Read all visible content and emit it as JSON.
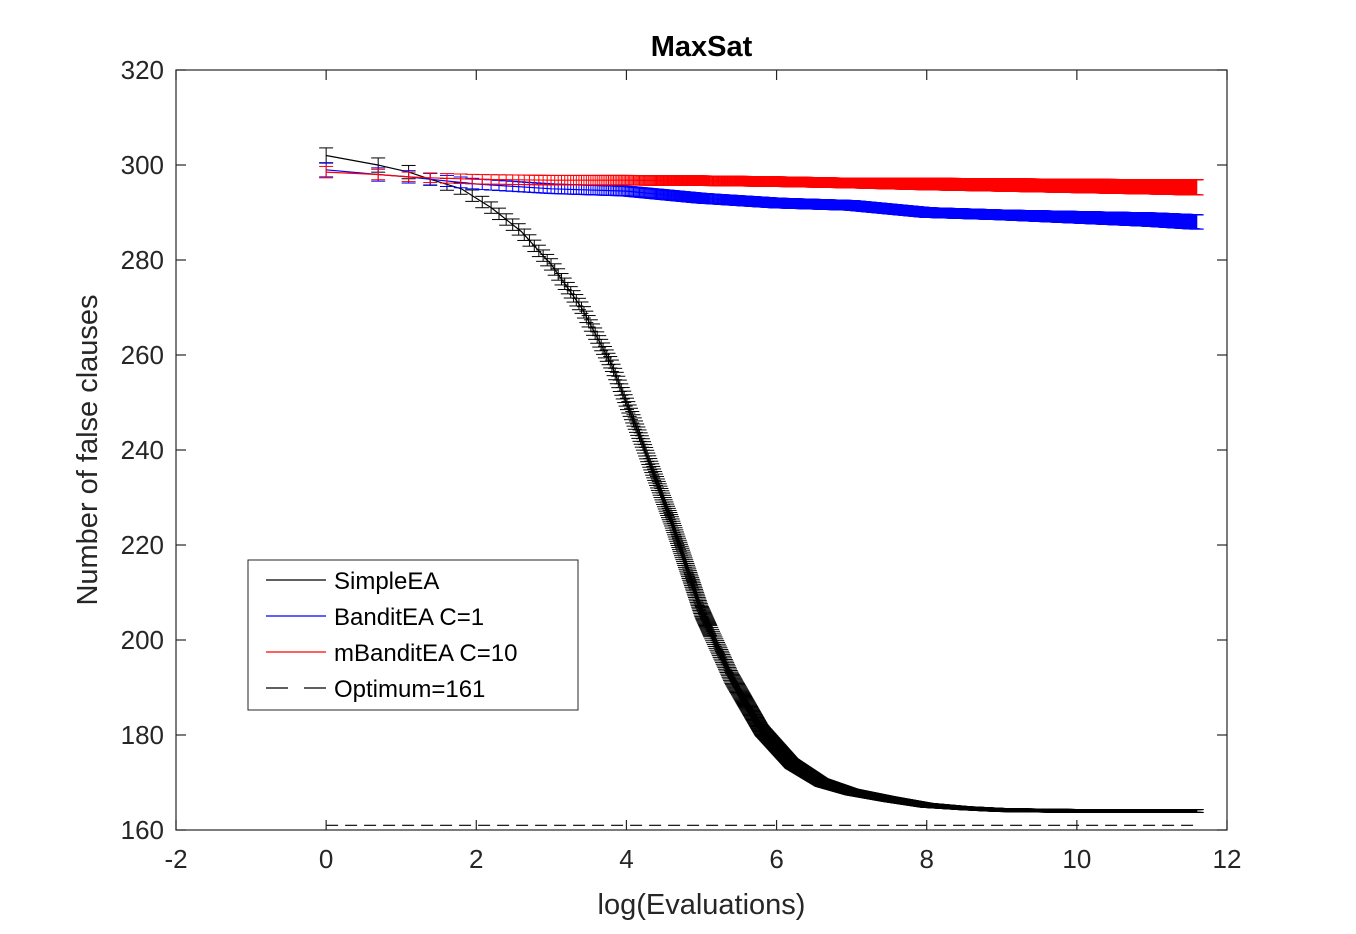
{
  "chart_data": {
    "type": "line",
    "title": "MaxSat",
    "xlabel": "log(Evaluations)",
    "ylabel": "Number of false clauses",
    "xlim": [
      -2,
      12
    ],
    "ylim": [
      160,
      320
    ],
    "xticks": [
      "-2",
      "0",
      "2",
      "4",
      "6",
      "8",
      "10",
      "12"
    ],
    "yticks": [
      "160",
      "180",
      "200",
      "220",
      "240",
      "260",
      "280",
      "300",
      "320"
    ],
    "grid": false,
    "legend_position": "lower-left",
    "error_bars": true,
    "series": [
      {
        "name": "SimpleEA",
        "color": "#000000",
        "dash": "solid",
        "x": [
          0,
          0.69,
          1.1,
          1.39,
          1.8,
          2.2,
          2.6,
          3.0,
          3.4,
          3.8,
          4.2,
          4.6,
          5.0,
          5.4,
          5.8,
          6.2,
          6.6,
          7.0,
          7.5,
          8.0,
          8.5,
          9.0,
          10.0,
          11.6
        ],
        "y": [
          302,
          300,
          298.5,
          297,
          295,
          291,
          286,
          279,
          270,
          258,
          242,
          225,
          206,
          192,
          181,
          174,
          170,
          168,
          166.5,
          165.2,
          164.6,
          164.2,
          164.0,
          164.0
        ],
        "err": [
          1.6,
          1.5,
          1.4,
          1.3,
          1.2,
          1.2,
          1.2,
          1.2,
          1.2,
          1.2,
          1.2,
          1.2,
          1.2,
          1.2,
          1.1,
          1.0,
          0.8,
          0.6,
          0.5,
          0.4,
          0.3,
          0.3,
          0.3,
          0.3
        ]
      },
      {
        "name": "BanditEA C=1",
        "color": "#0000ff",
        "dash": "solid",
        "x": [
          0,
          0.69,
          1.1,
          1.39,
          2.0,
          3.0,
          4.0,
          5.0,
          6.0,
          7.0,
          8.0,
          9.0,
          10.0,
          11.0,
          11.6
        ],
        "y": [
          299,
          298,
          297.5,
          297,
          296,
          295,
          294.5,
          293,
          292,
          291.5,
          290,
          289.5,
          289,
          288.5,
          288
        ],
        "err": [
          1.5,
          1.4,
          1.3,
          1.2,
          1.1,
          1.0,
          1.0,
          1.0,
          1.0,
          1.0,
          1.0,
          1.0,
          1.2,
          1.4,
          1.5
        ]
      },
      {
        "name": "mBanditEA C=10",
        "color": "#ff0000",
        "dash": "solid",
        "x": [
          0,
          0.69,
          1.1,
          1.39,
          2.0,
          3.0,
          4.0,
          5.0,
          6.0,
          7.0,
          8.0,
          9.0,
          10.0,
          11.0,
          11.6
        ],
        "y": [
          298.5,
          298,
          297.5,
          297.3,
          297,
          296.8,
          296.8,
          296.7,
          296.5,
          296.2,
          296,
          295.8,
          295.6,
          295.4,
          295.3
        ],
        "err": [
          1.2,
          1.1,
          1.0,
          1.0,
          1.0,
          1.0,
          1.0,
          1.0,
          1.0,
          1.0,
          1.2,
          1.3,
          1.4,
          1.5,
          1.6
        ]
      },
      {
        "name": "Optimum=161",
        "color": "#000000",
        "dash": "dashed",
        "x": [
          0,
          11.6
        ],
        "y": [
          161,
          161
        ],
        "err": null
      }
    ]
  }
}
